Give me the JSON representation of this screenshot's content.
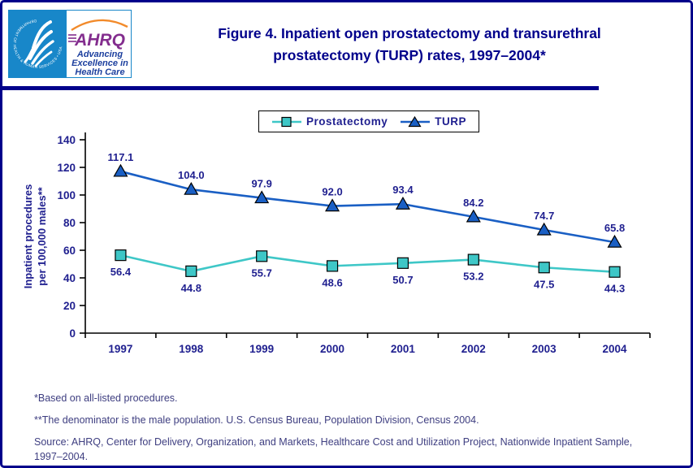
{
  "page": {
    "border_color": "#00008B",
    "background": "#FFFFFF"
  },
  "header": {
    "title_line1": "Figure 4. Inpatient open prostatectomy and transurethral",
    "title_line2": "prostatectomy (TURP) rates, 1997–2004*",
    "title_color": "#00008B",
    "logo": {
      "hhs_circle_text": "DEPARTMENT OF HEALTH & HUMAN SERVICES • USA",
      "ahrq_acronym": "AHRQ",
      "tagline_line1": "Advancing",
      "tagline_line2": "Excellence in",
      "tagline_line3": "Health Care",
      "hhs_blue": "#1887C9",
      "ahrq_purple": "#832D8E",
      "tagline_blue": "#1C3F9E",
      "arc_orange": "#F28A2A"
    }
  },
  "chart_data": {
    "type": "line",
    "categories": [
      "1997",
      "1998",
      "1999",
      "2000",
      "2001",
      "2002",
      "2003",
      "2004"
    ],
    "series": [
      {
        "name": "Prostatectomy",
        "values": [
          56.4,
          44.8,
          55.7,
          48.6,
          50.7,
          53.2,
          47.5,
          44.3
        ],
        "color": "#3EC7C7",
        "marker": "square",
        "label_position": "below"
      },
      {
        "name": "TURP",
        "values": [
          117.1,
          104.0,
          97.9,
          92.0,
          93.4,
          84.2,
          74.7,
          65.8
        ],
        "color": "#1A5FC4",
        "marker": "triangle",
        "label_position": "above"
      }
    ],
    "title": "Figure 4. Inpatient open prostatectomy and transurethral prostatectomy (TURP) rates, 1997–2004*",
    "xlabel": "",
    "ylabel_line1": "Inpatient procedures",
    "ylabel_line2": "per 100,000 males**",
    "ylim": [
      0,
      140
    ],
    "ytick_step": 20,
    "grid": false,
    "legend_position": "top",
    "label_color": "#1F1F8F",
    "axis_color": "#000000"
  },
  "footnotes": [
    "*Based on all-listed procedures.",
    "**The denominator is the male population. U.S. Census Bureau, Population Division, Census 2004.",
    "Source: AHRQ, Center for Delivery, Organization, and Markets, Healthcare Cost and Utilization Project, Nationwide Inpatient Sample, 1997–2004."
  ],
  "footnote_color": "#3E3E80"
}
